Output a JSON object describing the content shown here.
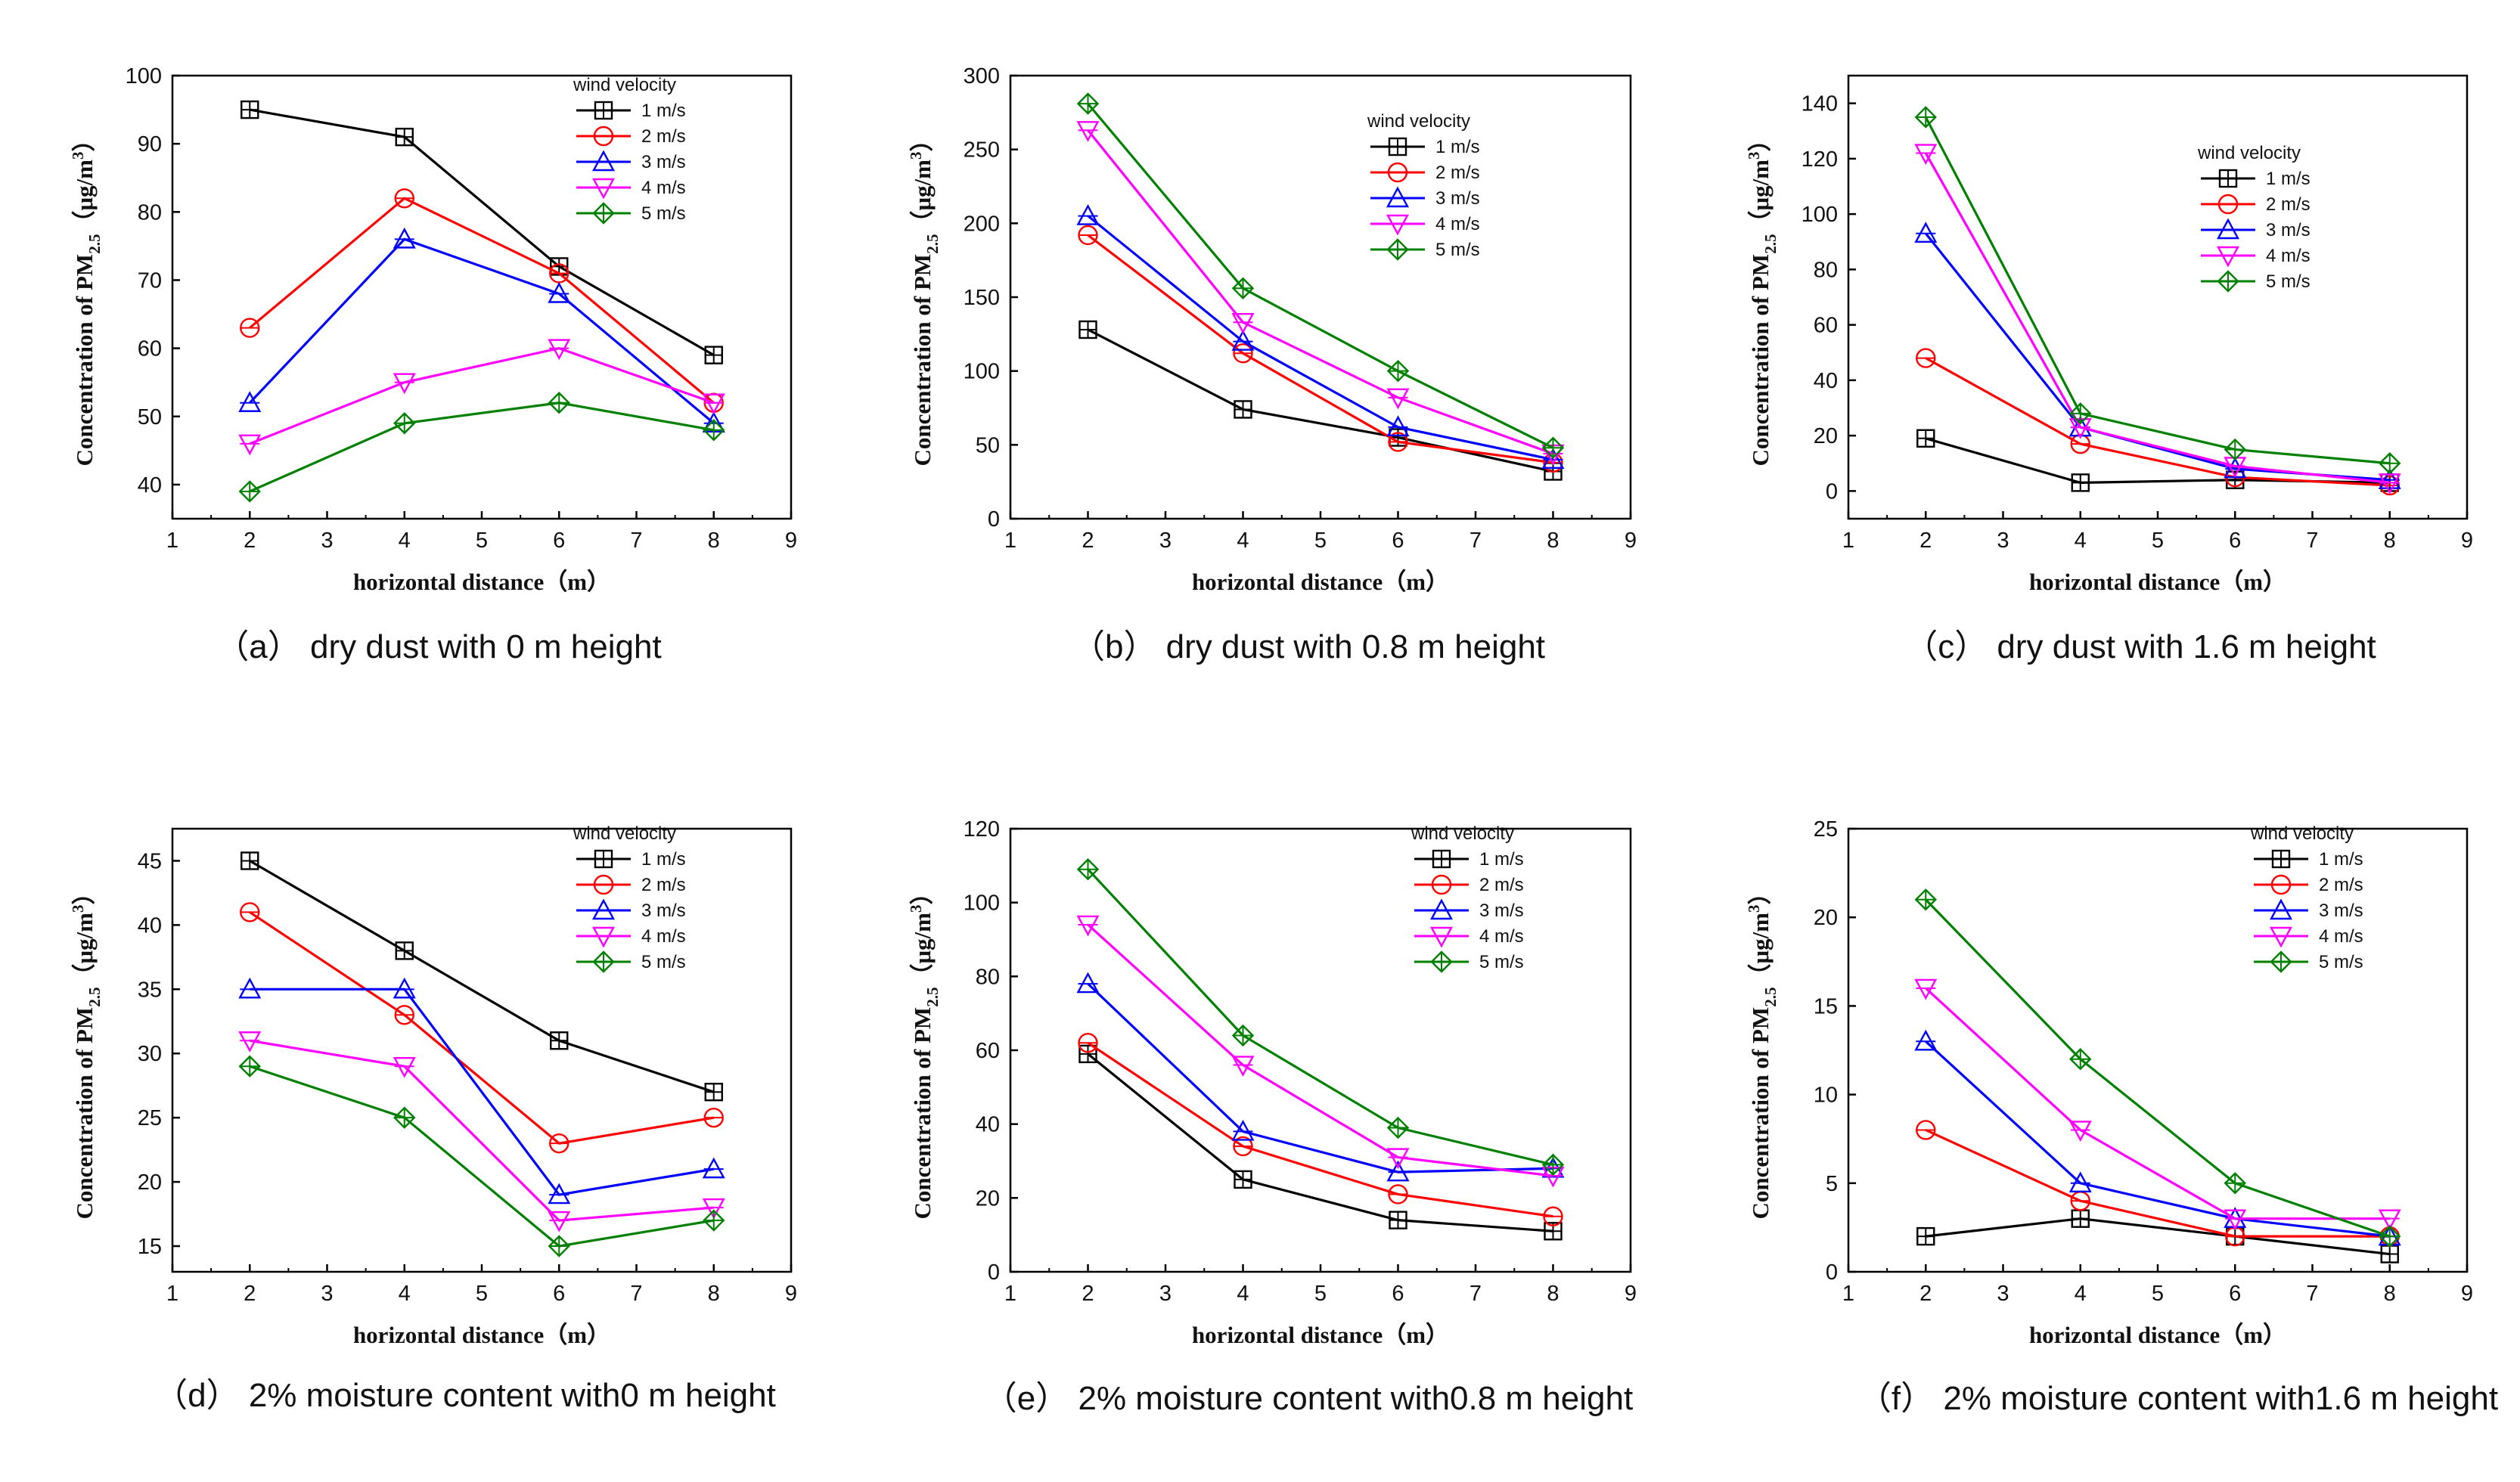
{
  "colors": [
    "#000000",
    "#ff0000",
    "#0000ff",
    "#ff00ff",
    "#008000"
  ],
  "markers": [
    "square",
    "circle",
    "triangle-up",
    "triangle-down",
    "diamond"
  ],
  "chart_data": [
    {
      "type": "line",
      "caption": "（a） dry dust with 0 m height",
      "ylabel_main": "Concentration of PM",
      "ylabel_sub": "2.5",
      "ylabel_unit": "（μg/m",
      "ylabel_sup": "3",
      "ylabel_close": "）",
      "xlabel": "horizontal distance（m）",
      "xlim": [
        1,
        9
      ],
      "xticks": [
        "1",
        "2",
        "3",
        "4",
        "5",
        "6",
        "7",
        "8",
        "9"
      ],
      "ylim": [
        35,
        100
      ],
      "yticks": [
        "40",
        "50",
        "60",
        "70",
        "80",
        "90",
        "100"
      ],
      "legend_title": "wind velocity",
      "legend_position": "top-right",
      "x": [
        2,
        4,
        6,
        8
      ],
      "series": [
        {
          "name": "1 m/s",
          "values": [
            95,
            91,
            72,
            59
          ]
        },
        {
          "name": "2 m/s",
          "values": [
            63,
            82,
            71,
            52
          ]
        },
        {
          "name": "3 m/s",
          "values": [
            52,
            76,
            68,
            49
          ]
        },
        {
          "name": "4 m/s",
          "values": [
            46,
            55,
            60,
            52
          ]
        },
        {
          "name": "5 m/s",
          "values": [
            39,
            49,
            52,
            48
          ]
        }
      ]
    },
    {
      "type": "line",
      "caption": "（b） dry dust with 0.8 m height",
      "ylabel_main": "Concentration of PM",
      "ylabel_sub": "2.5",
      "ylabel_unit": "（μg/m",
      "ylabel_sup": "3",
      "ylabel_close": "）",
      "xlabel": "horizontal distance（m）",
      "xlim": [
        1,
        9
      ],
      "xticks": [
        "1",
        "2",
        "3",
        "4",
        "5",
        "6",
        "7",
        "8",
        "9"
      ],
      "ylim": [
        0,
        300
      ],
      "yticks": [
        "0",
        "50",
        "100",
        "150",
        "200",
        "250",
        "300"
      ],
      "legend_title": "wind velocity",
      "legend_position": "top-right",
      "x": [
        2,
        4,
        6,
        8
      ],
      "series": [
        {
          "name": "1 m/s",
          "values": [
            128,
            74,
            55,
            32
          ]
        },
        {
          "name": "2 m/s",
          "values": [
            192,
            112,
            52,
            38
          ]
        },
        {
          "name": "3 m/s",
          "values": [
            205,
            120,
            62,
            40
          ]
        },
        {
          "name": "4 m/s",
          "values": [
            263,
            133,
            82,
            44
          ]
        },
        {
          "name": "5 m/s",
          "values": [
            281,
            156,
            100,
            48
          ]
        }
      ]
    },
    {
      "type": "line",
      "caption": "（c）  dry dust with 1.6 m height",
      "ylabel_main": "Concentration of PM",
      "ylabel_sub": "2.5",
      "ylabel_unit": "（μg/m",
      "ylabel_sup": "3",
      "ylabel_close": "）",
      "xlabel": "horizontal distance（m）",
      "xlim": [
        1,
        9
      ],
      "xticks": [
        "1",
        "2",
        "3",
        "4",
        "5",
        "6",
        "7",
        "8",
        "9"
      ],
      "ylim": [
        -10,
        150
      ],
      "yticks": [
        "0",
        "20",
        "40",
        "60",
        "80",
        "100",
        "120",
        "140"
      ],
      "legend_title": "wind velocity",
      "legend_position": "top-right",
      "x": [
        2,
        4,
        6,
        8
      ],
      "series": [
        {
          "name": "1 m/s",
          "values": [
            19,
            3,
            4,
            3
          ]
        },
        {
          "name": "2 m/s",
          "values": [
            48,
            17,
            5,
            2
          ]
        },
        {
          "name": "3 m/s",
          "values": [
            93,
            23,
            8,
            4
          ]
        },
        {
          "name": "4 m/s",
          "values": [
            122,
            23,
            9,
            3
          ]
        },
        {
          "name": "5 m/s",
          "values": [
            135,
            28,
            15,
            10
          ]
        }
      ]
    },
    {
      "type": "line",
      "caption": "（d） 2% moisture content with0 m height",
      "ylabel_main": "Concentration of PM",
      "ylabel_sub": "2.5",
      "ylabel_unit": "（μg/m",
      "ylabel_sup": "3",
      "ylabel_close": "）",
      "xlabel": "horizontal distance（m）",
      "xlim": [
        1,
        9
      ],
      "xticks": [
        "1",
        "2",
        "3",
        "4",
        "5",
        "6",
        "7",
        "8",
        "9"
      ],
      "ylim": [
        13,
        47.5
      ],
      "yticks": [
        "15",
        "20",
        "25",
        "30",
        "35",
        "40",
        "45"
      ],
      "legend_title": "wind velocity",
      "legend_position": "top-right",
      "x": [
        2,
        4,
        6,
        8
      ],
      "series": [
        {
          "name": "1 m/s",
          "values": [
            45,
            38,
            31,
            27
          ]
        },
        {
          "name": "2 m/s",
          "values": [
            41,
            33,
            23,
            25
          ]
        },
        {
          "name": "3 m/s",
          "values": [
            35,
            35,
            19,
            21
          ]
        },
        {
          "name": "4 m/s",
          "values": [
            31,
            29,
            17,
            18
          ]
        },
        {
          "name": "5 m/s",
          "values": [
            29,
            25,
            15,
            17
          ]
        }
      ]
    },
    {
      "type": "line",
      "caption": "（e） 2% moisture content with0.8 m height",
      "ylabel_main": "Concentration of PM",
      "ylabel_sub": "2.5",
      "ylabel_unit": "（μg/m",
      "ylabel_sup": "3",
      "ylabel_close": "）",
      "xlabel": "horizontal distance（m）",
      "xlim": [
        1,
        9
      ],
      "xticks": [
        "1",
        "2",
        "3",
        "4",
        "5",
        "6",
        "7",
        "8",
        "9"
      ],
      "ylim": [
        0,
        120
      ],
      "yticks": [
        "0",
        "20",
        "40",
        "60",
        "80",
        "100",
        "120"
      ],
      "legend_title": "wind velocity",
      "legend_position": "top-right",
      "x": [
        2,
        4,
        6,
        8
      ],
      "series": [
        {
          "name": "1 m/s",
          "values": [
            59,
            25,
            14,
            11
          ]
        },
        {
          "name": "2 m/s",
          "values": [
            62,
            34,
            21,
            15
          ]
        },
        {
          "name": "3 m/s",
          "values": [
            78,
            38,
            27,
            28
          ]
        },
        {
          "name": "4 m/s",
          "values": [
            94,
            56,
            31,
            26
          ]
        },
        {
          "name": "5 m/s",
          "values": [
            109,
            64,
            39,
            29
          ]
        }
      ]
    },
    {
      "type": "line",
      "caption": "（f） 2% moisture content with1.6 m height",
      "ylabel_main": "Concentration of PM",
      "ylabel_sub": "2.5",
      "ylabel_unit": "（μg/m",
      "ylabel_sup": "3",
      "ylabel_close": "）",
      "xlabel": "horizontal distance（m）",
      "xlim": [
        1,
        9
      ],
      "xticks": [
        "1",
        "2",
        "3",
        "4",
        "5",
        "6",
        "7",
        "8",
        "9"
      ],
      "ylim": [
        0,
        25
      ],
      "yticks": [
        "0",
        "5",
        "10",
        "15",
        "20",
        "25"
      ],
      "legend_title": "wind velocity",
      "legend_position": "top-right",
      "x": [
        2,
        4,
        6,
        8
      ],
      "series": [
        {
          "name": "1 m/s",
          "values": [
            2,
            3,
            2,
            1
          ]
        },
        {
          "name": "2 m/s",
          "values": [
            8,
            4,
            2,
            2
          ]
        },
        {
          "name": "3 m/s",
          "values": [
            13,
            5,
            3,
            2
          ]
        },
        {
          "name": "4 m/s",
          "values": [
            16,
            8,
            3,
            3
          ]
        },
        {
          "name": "5 m/s",
          "values": [
            21,
            12,
            5,
            2
          ]
        }
      ]
    }
  ]
}
